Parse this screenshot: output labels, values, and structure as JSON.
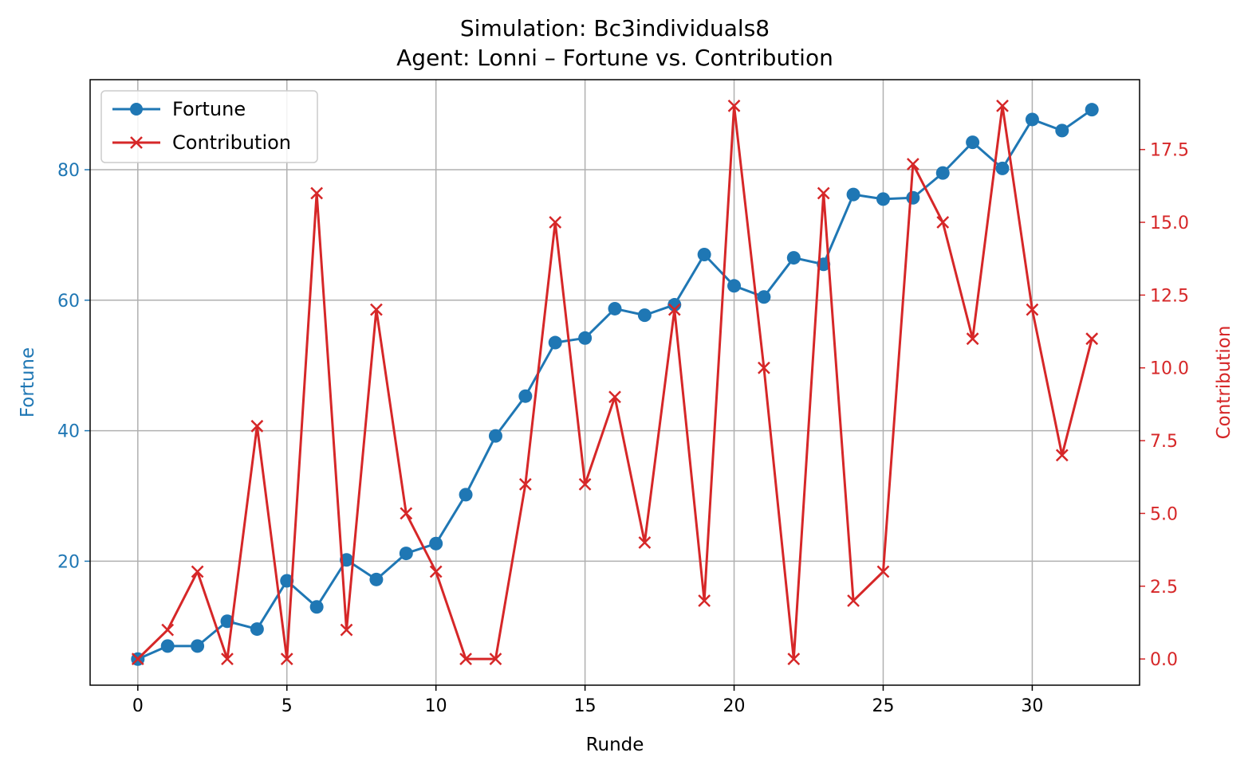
{
  "chart_data": {
    "type": "line",
    "title": "Simulation: Bc3individuals8",
    "subtitle": "Agent: Lonni – Fortune vs. Contribution",
    "xlabel": "Runde",
    "ylabel_left": "Fortune",
    "ylabel_right": "Contribution",
    "xlim": [
      -1.6,
      33.6
    ],
    "ylim_left": [
      1.0,
      93.8
    ],
    "ylim_right": [
      -0.9,
      19.9
    ],
    "x_ticks": [
      0,
      5,
      10,
      15,
      20,
      25,
      30
    ],
    "y_left_ticks": [
      20,
      40,
      60,
      80
    ],
    "y_right_ticks": [
      0.0,
      2.5,
      5.0,
      7.5,
      10.0,
      12.5,
      15.0,
      17.5
    ],
    "grid": true,
    "legend_position": "top-left",
    "colors": {
      "fortune": "#1f77b4",
      "contribution": "#d62728"
    },
    "x": [
      0,
      1,
      2,
      3,
      4,
      5,
      6,
      7,
      8,
      9,
      10,
      11,
      12,
      13,
      14,
      15,
      16,
      17,
      18,
      19,
      20,
      21,
      22,
      23,
      24,
      25,
      26,
      27,
      28,
      29,
      30,
      31,
      32
    ],
    "series": [
      {
        "name": "Fortune",
        "axis": "left",
        "marker": "circle",
        "color": "#1f77b4",
        "values": [
          5.0,
          7.0,
          7.0,
          10.8,
          9.6,
          17.0,
          13.0,
          20.2,
          17.2,
          21.2,
          22.7,
          30.2,
          39.2,
          45.3,
          53.5,
          54.2,
          58.7,
          57.7,
          59.3,
          67.0,
          62.2,
          60.5,
          66.5,
          65.5,
          76.2,
          75.5,
          75.7,
          79.5,
          84.2,
          80.2,
          87.7,
          86.0,
          89.2
        ]
      },
      {
        "name": "Contribution",
        "axis": "right",
        "marker": "x",
        "color": "#d62728",
        "values": [
          0,
          1,
          3,
          0,
          8,
          0,
          16,
          1,
          12,
          5,
          3,
          0,
          0,
          6,
          15,
          6,
          9,
          4,
          12,
          2,
          19,
          10,
          0,
          16,
          2,
          3,
          17,
          15,
          11,
          19,
          12,
          7,
          11
        ]
      }
    ]
  }
}
